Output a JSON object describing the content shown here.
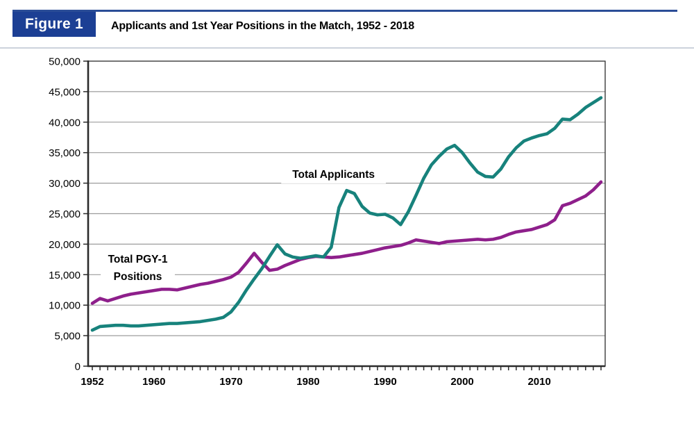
{
  "header": {
    "figure_label": "Figure 1",
    "title": "Applicants and 1st Year Positions in the Match, 1952 - 2018",
    "accent_color": "#1c3f94"
  },
  "chart_data": {
    "type": "line",
    "title": "Applicants and 1st Year Positions in the Match, 1952 - 2018",
    "xlabel": "",
    "ylabel": "",
    "grid": "horizontal",
    "legend_position": "inline-annotations",
    "ylim": [
      0,
      50000
    ],
    "ytick_step": 5000,
    "xticks_labeled": [
      1952,
      1960,
      1970,
      1980,
      1990,
      2000,
      2010
    ],
    "gridline_color": "#9c9c9c",
    "axis_color": "#2b2b2b",
    "x": [
      1952,
      1953,
      1954,
      1955,
      1956,
      1957,
      1958,
      1959,
      1960,
      1961,
      1962,
      1963,
      1964,
      1965,
      1966,
      1967,
      1968,
      1969,
      1970,
      1971,
      1972,
      1973,
      1974,
      1975,
      1976,
      1977,
      1978,
      1979,
      1980,
      1981,
      1982,
      1983,
      1984,
      1985,
      1986,
      1987,
      1988,
      1989,
      1990,
      1991,
      1992,
      1993,
      1994,
      1995,
      1996,
      1997,
      1998,
      1999,
      2000,
      2001,
      2002,
      2003,
      2004,
      2005,
      2006,
      2007,
      2008,
      2009,
      2010,
      2011,
      2012,
      2013,
      2014,
      2015,
      2016,
      2017,
      2018
    ],
    "series": [
      {
        "name": "Total Applicants",
        "color": "#17827c",
        "values": [
          5900,
          6500,
          6600,
          6700,
          6700,
          6600,
          6600,
          6700,
          6800,
          6900,
          7000,
          7000,
          7100,
          7200,
          7300,
          7500,
          7700,
          8000,
          8900,
          10500,
          12500,
          14300,
          16000,
          18000,
          19900,
          18400,
          17900,
          17700,
          17900,
          18100,
          17900,
          19500,
          26000,
          28800,
          28300,
          26200,
          25100,
          24800,
          24900,
          24300,
          23200,
          25300,
          28000,
          30800,
          33000,
          34400,
          35600,
          36200,
          35000,
          33300,
          31800,
          31100,
          31000,
          32300,
          34300,
          35800,
          36900,
          37400,
          37800,
          38100,
          39000,
          40500,
          40400,
          41300,
          42400,
          43200,
          44000
        ]
      },
      {
        "name": "Total PGY-1 Positions",
        "color": "#8e1f8b",
        "values": [
          10300,
          11100,
          10700,
          11100,
          11500,
          11800,
          12000,
          12200,
          12400,
          12600,
          12600,
          12500,
          12800,
          13100,
          13400,
          13600,
          13900,
          14200,
          14600,
          15400,
          16900,
          18500,
          17000,
          15700,
          15900,
          16500,
          17000,
          17500,
          17800,
          18000,
          17900,
          17800,
          17900,
          18100,
          18300,
          18500,
          18800,
          19100,
          19400,
          19600,
          19800,
          20200,
          20700,
          20500,
          20300,
          20100,
          20400,
          20500,
          20600,
          20700,
          20800,
          20700,
          20800,
          21100,
          21600,
          22000,
          22200,
          22400,
          22800,
          23200,
          24000,
          26300,
          26700,
          27300,
          27900,
          28900,
          30200
        ]
      }
    ],
    "annotations": [
      {
        "lines": [
          "Total Applicants"
        ],
        "year": 1983.3,
        "value": 31500
      },
      {
        "lines": [
          "Total PGY-1",
          "Positions"
        ],
        "year": 1957.9,
        "value": 16200
      }
    ]
  }
}
